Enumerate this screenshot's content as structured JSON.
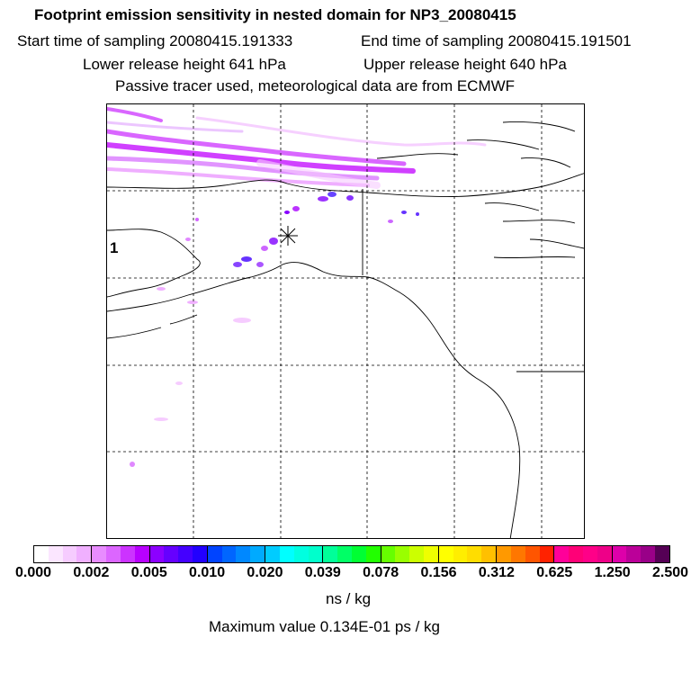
{
  "header": {
    "title": "Footprint emission sensitivity in nested domain for NP3_20080415",
    "start_time": "Start time of sampling 20080415.191333",
    "end_time": "End time of sampling 20080415.191501",
    "lower_height": "Lower release height  641 hPa",
    "upper_height": "Upper release height  640 hPa",
    "tracer_note": "Passive tracer used, meteorological data are from ECMWF"
  },
  "map": {
    "side_label": "1",
    "release_marker": "asterisk",
    "plume_color": "#c000ff",
    "coast_color": "#000000"
  },
  "colorbar": {
    "ticks": [
      "0.000",
      "0.002",
      "0.005",
      "0.010",
      "0.020",
      "0.039",
      "0.078",
      "0.156",
      "0.312",
      "0.625",
      "1.250",
      "2.500"
    ],
    "segments": [
      [
        "#ffffff",
        "#fbe6ff",
        "#f6ccff",
        "#f0b0ff"
      ],
      [
        "#e88cff",
        "#dc66ff",
        "#cc33ff",
        "#b800ff"
      ],
      [
        "#8c00ff",
        "#6600ff",
        "#4400ff",
        "#2200ff"
      ],
      [
        "#0044ff",
        "#0066ff",
        "#0088ff",
        "#00aaff"
      ],
      [
        "#00ccff",
        "#00ffff",
        "#00ffe0",
        "#00ffcc"
      ],
      [
        "#00ff99",
        "#00ff66",
        "#00ff33",
        "#22ff00"
      ],
      [
        "#66ff00",
        "#99ff00",
        "#ccff00",
        "#eeff00"
      ],
      [
        "#ffff00",
        "#ffee00",
        "#ffdd00",
        "#ffc000"
      ],
      [
        "#ff9900",
        "#ff7700",
        "#ff5500",
        "#ff2200"
      ],
      [
        "#ff0099",
        "#ff0077",
        "#ff0088",
        "#ee0088"
      ],
      [
        "#dd00aa",
        "#bb0099",
        "#990088",
        "#550055"
      ]
    ],
    "units": "ns / kg",
    "maximum": "Maximum value  0.134E-01 ps / kg"
  }
}
